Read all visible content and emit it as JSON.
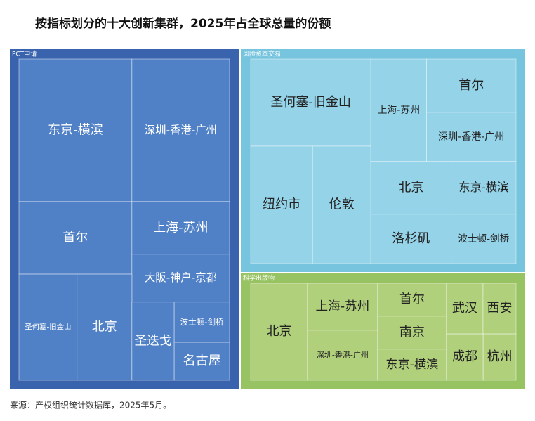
{
  "chart_data": {
    "type": "treemap",
    "title": "按指标划分的十大创新集群，2025年占全球总量的份额",
    "source": "来源：产权组织统计数据库，2025年5月。",
    "groups": [
      {
        "name": "PCT申请",
        "color": "#5080c6",
        "categories": [
          "东京-横滨",
          "深圳-香港-广州",
          "首尔",
          "上海-苏州",
          "大阪-神户-京都",
          "圣何塞-旧金山",
          "北京",
          "圣迭戈",
          "波士顿-剑桥",
          "名古屋"
        ],
        "values": [
          23.8,
          20.6,
          12.1,
          7.6,
          6.9,
          9.1,
          8.6,
          4.9,
          3.3,
          3.1
        ]
      },
      {
        "name": "风险资本交易",
        "color": "#94d3e8",
        "categories": [
          "圣何塞-旧金山",
          "纽约市",
          "伦敦",
          "上海-苏州",
          "首尔",
          "深圳-香港-广州",
          "北京",
          "东京-横滨",
          "洛杉矶",
          "波士顿-剑桥"
        ],
        "values": [
          19.3,
          13.4,
          12.6,
          10.5,
          8.8,
          8.1,
          7.8,
          6.3,
          7.3,
          5.9
        ]
      },
      {
        "name": "科学出版物",
        "color": "#b0d07c",
        "categories": [
          "北京",
          "上海-苏州",
          "深圳-香港-广州",
          "首尔",
          "南京",
          "东京-横滨",
          "武汉",
          "西安",
          "成都",
          "杭州"
        ],
        "values": [
          21.4,
          12.8,
          13.6,
          8.8,
          8.8,
          8.3,
          7.2,
          6.5,
          6.6,
          5.9
        ]
      }
    ]
  }
}
